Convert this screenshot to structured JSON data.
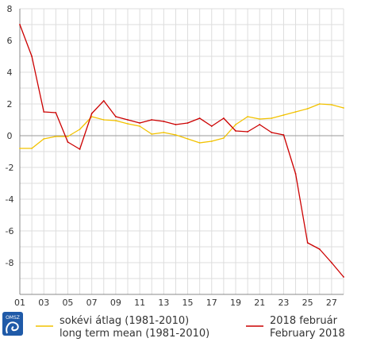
{
  "chart_data": {
    "type": "line",
    "xlabel": "",
    "ylabel": "",
    "x": [
      1,
      2,
      3,
      4,
      5,
      6,
      7,
      8,
      9,
      10,
      11,
      12,
      13,
      14,
      15,
      16,
      17,
      18,
      19,
      20,
      21,
      22,
      23,
      24,
      25,
      26,
      27,
      28
    ],
    "xticks": [
      1,
      3,
      5,
      7,
      9,
      11,
      13,
      15,
      17,
      19,
      21,
      23,
      25,
      27
    ],
    "xtick_labels": [
      "01",
      "03",
      "05",
      "07",
      "09",
      "11",
      "13",
      "15",
      "17",
      "19",
      "21",
      "23",
      "25",
      "27"
    ],
    "yticks": [
      -8,
      -6,
      -4,
      -2,
      0,
      2,
      4,
      6,
      8
    ],
    "ylim": [
      -10,
      8
    ],
    "grid": true,
    "series": [
      {
        "name": "sokévi átlag (1981-2010)",
        "name_line2": "long term mean (1981-2010)",
        "color": "#f2c200",
        "values": [
          -0.8,
          -0.8,
          -0.2,
          -0.05,
          -0.05,
          0.4,
          1.2,
          1.0,
          0.95,
          0.75,
          0.6,
          0.1,
          0.2,
          0.05,
          -0.2,
          -0.45,
          -0.35,
          -0.15,
          0.7,
          1.2,
          1.05,
          1.1,
          1.3,
          1.5,
          1.7,
          2.0,
          1.95,
          1.75
        ]
      },
      {
        "name": "2018 február",
        "name_line2": "February 2018",
        "color": "#cc0000",
        "values": [
          7.0,
          5.0,
          1.5,
          1.45,
          -0.4,
          -0.85,
          1.4,
          2.2,
          1.2,
          1.0,
          0.8,
          1.0,
          0.9,
          0.7,
          0.8,
          1.1,
          0.6,
          1.1,
          0.3,
          0.25,
          0.7,
          0.2,
          0.05,
          -2.4,
          -6.75,
          -7.15,
          -8.0,
          -8.9
        ]
      }
    ]
  },
  "legend": {
    "logo_text": "OMSZ"
  }
}
